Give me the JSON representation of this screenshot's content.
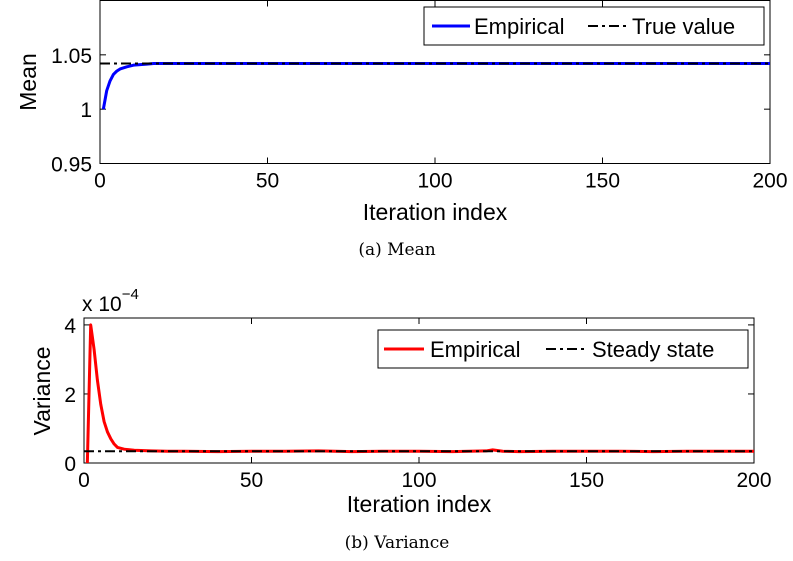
{
  "chart_data": [
    {
      "type": "line",
      "xlabel": "Iteration index",
      "ylabel": "Mean",
      "xlim": [
        0,
        200
      ],
      "ylim": [
        0.95,
        1.1
      ],
      "xticks": [
        "0",
        "50",
        "100",
        "150",
        "200"
      ],
      "xtick_values": [
        0,
        50,
        100,
        150,
        200
      ],
      "yticks": [
        "0.95",
        "1",
        "1.05"
      ],
      "ytick_values": [
        0.95,
        1.0,
        1.05
      ],
      "legend_position": "top-right",
      "caption": "(a) Mean",
      "series": [
        {
          "name": "Empirical",
          "color": "#0000ff",
          "style": "solid",
          "x": [
            1,
            2,
            3,
            4,
            5,
            6,
            8,
            10,
            12,
            14,
            16,
            20,
            25,
            30,
            40,
            50,
            60,
            70,
            80,
            90,
            100,
            110,
            120,
            130,
            140,
            150,
            160,
            170,
            180,
            190,
            200
          ],
          "y": [
            1.0,
            1.017,
            1.026,
            1.032,
            1.035,
            1.037,
            1.039,
            1.0405,
            1.041,
            1.0415,
            1.042,
            1.042,
            1.042,
            1.042,
            1.042,
            1.042,
            1.042,
            1.042,
            1.042,
            1.042,
            1.042,
            1.042,
            1.042,
            1.042,
            1.042,
            1.042,
            1.042,
            1.042,
            1.042,
            1.042,
            1.042
          ]
        },
        {
          "name": "True value",
          "color": "#000000",
          "style": "dashdot",
          "x": [
            0,
            200
          ],
          "y": [
            1.042,
            1.042
          ]
        }
      ]
    },
    {
      "type": "line",
      "xlabel": "Iteration index",
      "ylabel": "Variance",
      "scale_label": "x 10",
      "scale_exponent": "−4",
      "xlim": [
        0,
        200
      ],
      "ylim": [
        0,
        4.2
      ],
      "xticks": [
        "0",
        "50",
        "100",
        "150",
        "200"
      ],
      "xtick_values": [
        0,
        50,
        100,
        150,
        200
      ],
      "yticks": [
        "0",
        "2",
        "4"
      ],
      "ytick_values": [
        0,
        2,
        4
      ],
      "legend_position": "top-right",
      "caption": "(b) Variance",
      "series": [
        {
          "name": "Empirical",
          "color": "#ff0000",
          "style": "solid",
          "x": [
            1,
            2,
            3,
            4,
            5,
            6,
            7,
            8,
            9,
            10,
            12,
            15,
            20,
            25,
            30,
            40,
            50,
            60,
            70,
            80,
            90,
            100,
            110,
            120,
            122,
            125,
            130,
            140,
            150,
            160,
            170,
            180,
            190,
            200
          ],
          "y": [
            0,
            4.0,
            3.3,
            2.4,
            1.7,
            1.2,
            0.9,
            0.7,
            0.55,
            0.45,
            0.4,
            0.37,
            0.35,
            0.34,
            0.34,
            0.33,
            0.34,
            0.34,
            0.35,
            0.33,
            0.34,
            0.34,
            0.33,
            0.35,
            0.38,
            0.34,
            0.33,
            0.34,
            0.34,
            0.34,
            0.33,
            0.34,
            0.34,
            0.34
          ]
        },
        {
          "name": "Steady state",
          "color": "#000000",
          "style": "dashdot",
          "x": [
            0,
            200
          ],
          "y": [
            0.34,
            0.34
          ]
        }
      ]
    }
  ]
}
